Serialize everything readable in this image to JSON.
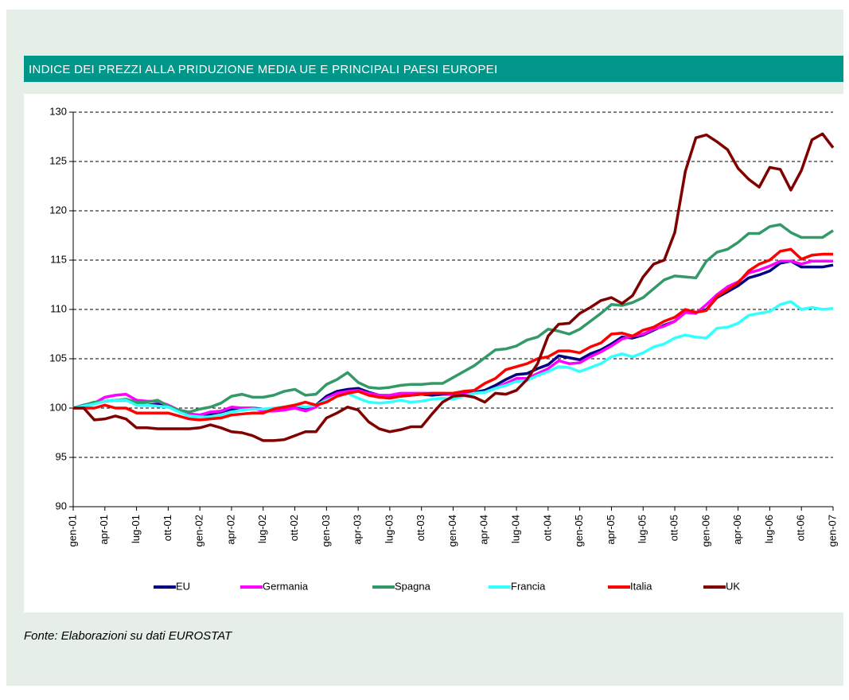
{
  "chart_data": {
    "type": "line",
    "title": "INDICE DEI PREZZI ALLA PRIDUZIONE MEDIA UE E PRINCIPALI PAESI EUROPEI",
    "source": "Fonte: Elaborazioni su dati EUROSTAT",
    "categories": [
      "gen-01",
      null,
      null,
      "apr-01",
      null,
      null,
      "lug-01",
      null,
      null,
      "ott-01",
      null,
      null,
      "gen-02",
      null,
      null,
      "apr-02",
      null,
      null,
      "lug-02",
      null,
      null,
      "ott-02",
      null,
      null,
      "gen-03",
      null,
      null,
      "apr-03",
      null,
      null,
      "lug-03",
      null,
      null,
      "ott-03",
      null,
      null,
      "gen-04",
      null,
      null,
      "apr-04",
      null,
      null,
      "lug-04",
      null,
      null,
      "ott-04",
      null,
      null,
      "gen-05",
      null,
      null,
      "apr-05",
      null,
      null,
      "lug-05",
      null,
      null,
      "ott-05",
      null,
      null,
      "gen-06",
      null,
      null,
      "apr-06",
      null,
      null,
      "lug-06",
      null,
      null,
      "ott-06",
      null,
      null,
      "gen-07"
    ],
    "ylim": [
      90,
      130
    ],
    "yticks": [
      90,
      95,
      100,
      105,
      110,
      115,
      120,
      125,
      130
    ],
    "grid": true,
    "legend": "bottom",
    "series": [
      {
        "name": "EU",
        "color": "#000080",
        "values": [
          100,
          100.3,
          100.5,
          100.7,
          100.8,
          100.8,
          100.5,
          100.3,
          100.4,
          100.1,
          99.7,
          99.4,
          99.3,
          99.4,
          99.6,
          99.9,
          100,
          100,
          99.9,
          99.9,
          100,
          100.2,
          100,
          100.3,
          101.2,
          101.7,
          101.9,
          102,
          101.6,
          101.3,
          101.2,
          101.2,
          101.3,
          101.4,
          101.3,
          101.4,
          101.4,
          101.5,
          101.6,
          101.8,
          102.3,
          102.9,
          103.4,
          103.5,
          104,
          104.4,
          105.3,
          105.1,
          104.9,
          105.5,
          105.9,
          106.5,
          107.2,
          107.1,
          107.4,
          107.9,
          108.4,
          108.8,
          109.7,
          109.7,
          110,
          111.2,
          111.8,
          112.4,
          113.2,
          113.5,
          113.9,
          114.7,
          114.9,
          114.3,
          114.3,
          114.3,
          114.5
        ]
      },
      {
        "name": "Germania",
        "color": "#ff00ff",
        "values": [
          100,
          100.3,
          100.5,
          101.1,
          101.3,
          101.4,
          100.8,
          100.7,
          100.7,
          100.3,
          99.8,
          99.4,
          99.3,
          99.6,
          99.7,
          100.1,
          100,
          100,
          99.7,
          99.7,
          99.8,
          100,
          99.7,
          100.1,
          101,
          101.5,
          101.7,
          101.8,
          101.5,
          101.3,
          101.3,
          101.5,
          101.5,
          101.5,
          101.5,
          101.5,
          101.4,
          101.4,
          101.5,
          101.6,
          102,
          102.5,
          103,
          103,
          103.5,
          104,
          104.8,
          104.5,
          104.6,
          105.2,
          105.7,
          106.3,
          107,
          107.3,
          107.5,
          108,
          108.3,
          108.8,
          109.7,
          109.6,
          110.5,
          111.5,
          112.3,
          112.8,
          113.7,
          114,
          114.4,
          114.9,
          114.9,
          114.6,
          114.9,
          114.9,
          114.9
        ]
      },
      {
        "name": "Spagna",
        "color": "#339966",
        "values": [
          100,
          100.3,
          100.6,
          100.7,
          100.8,
          100.9,
          100.6,
          100.6,
          100.8,
          100.2,
          99.8,
          99.6,
          99.9,
          100.1,
          100.5,
          101.2,
          101.4,
          101.1,
          101.1,
          101.3,
          101.7,
          101.9,
          101.3,
          101.4,
          102.4,
          102.9,
          103.6,
          102.6,
          102.1,
          102,
          102.1,
          102.3,
          102.4,
          102.4,
          102.5,
          102.5,
          103.1,
          103.7,
          104.3,
          105.1,
          105.9,
          106,
          106.3,
          106.9,
          107.2,
          108,
          107.8,
          107.5,
          108,
          108.8,
          109.6,
          110.5,
          110.4,
          110.7,
          111.2,
          112.1,
          113,
          113.4,
          113.3,
          113.2,
          114.9,
          115.8,
          116.1,
          116.8,
          117.7,
          117.7,
          118.4,
          118.6,
          117.8,
          117.3,
          117.3,
          117.3,
          118
        ]
      },
      {
        "name": "Francia",
        "color": "#33ffff",
        "values": [
          100,
          100.2,
          100.4,
          100.7,
          100.8,
          100.8,
          100.3,
          100.3,
          100.2,
          100.1,
          99.6,
          99.2,
          99.1,
          99.1,
          99.3,
          99.6,
          99.8,
          99.9,
          99.9,
          100,
          100.1,
          100.3,
          100.1,
          100.3,
          100.8,
          101.2,
          101.5,
          101,
          100.6,
          100.5,
          100.6,
          100.8,
          100.6,
          100.7,
          100.9,
          101,
          100.9,
          101.2,
          101.5,
          101.6,
          102,
          102.3,
          102.7,
          102.8,
          103.3,
          103.7,
          104.2,
          104.1,
          103.7,
          104.1,
          104.5,
          105.2,
          105.5,
          105.2,
          105.6,
          106.2,
          106.5,
          107.1,
          107.4,
          107.2,
          107.1,
          108.1,
          108.2,
          108.6,
          109.4,
          109.6,
          109.8,
          110.5,
          110.8,
          110,
          110.2,
          110,
          110.1
        ]
      },
      {
        "name": "Italia",
        "color": "#ff0000",
        "values": [
          100,
          100,
          100,
          100.3,
          100,
          100,
          99.5,
          99.5,
          99.5,
          99.5,
          99.2,
          98.9,
          98.8,
          98.9,
          99,
          99.3,
          99.4,
          99.5,
          99.5,
          99.9,
          100.1,
          100.3,
          100.6,
          100.3,
          100.6,
          101.2,
          101.5,
          101.7,
          101.3,
          101.1,
          101,
          101.2,
          101.3,
          101.4,
          101.5,
          101.5,
          101.5,
          101.7,
          101.8,
          102.5,
          103,
          103.9,
          104.2,
          104.5,
          105,
          105.2,
          105.8,
          105.8,
          105.6,
          106.2,
          106.6,
          107.5,
          107.6,
          107.3,
          107.9,
          108.2,
          108.8,
          109.2,
          110,
          109.7,
          109.9,
          111.3,
          112,
          112.7,
          113.9,
          114.6,
          115,
          115.9,
          116.1,
          115.1,
          115.5,
          115.6,
          115.6
        ]
      },
      {
        "name": "UK",
        "color": "#800000",
        "values": [
          100,
          100,
          98.8,
          98.9,
          99.2,
          98.9,
          98,
          98,
          97.9,
          97.9,
          97.9,
          97.9,
          98,
          98.3,
          98,
          97.6,
          97.5,
          97.2,
          96.7,
          96.7,
          96.8,
          97.2,
          97.6,
          97.6,
          99,
          99.5,
          100.1,
          99.8,
          98.6,
          97.9,
          97.6,
          97.8,
          98.1,
          98.1,
          99.4,
          100.6,
          101.2,
          101.3,
          101.1,
          100.6,
          101.5,
          101.4,
          101.8,
          102.9,
          104.5,
          107.3,
          108.5,
          108.6,
          109.6,
          110.2,
          110.9,
          111.2,
          110.6,
          111.4,
          113.3,
          114.6,
          115,
          117.8,
          124,
          127.4,
          127.7,
          127,
          126.2,
          124.3,
          123.2,
          122.4,
          124.4,
          124.2,
          122.1,
          124.1,
          127.2,
          127.8,
          126.4
        ]
      }
    ]
  }
}
